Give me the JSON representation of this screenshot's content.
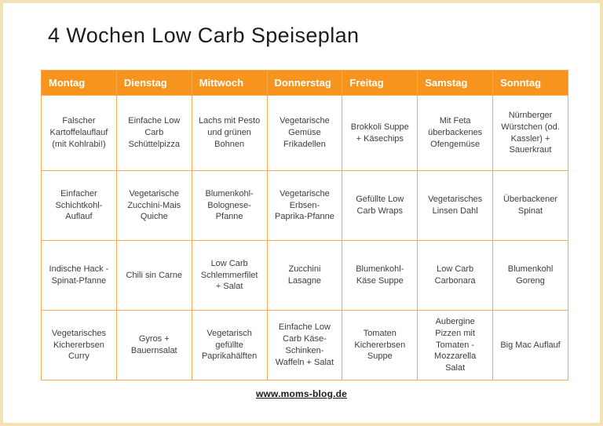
{
  "page": {
    "title": "4 Wochen Low Carb Speiseplan",
    "footer_link": "www.moms-blog.de"
  },
  "colors": {
    "header_bg": "#F7941E",
    "header_text": "#FFFFFF",
    "grid_border": "#F9A94D",
    "cell_text": "#3D3D3D",
    "frame": "#F3E2B4"
  },
  "table": {
    "columns": [
      "Montag",
      "Dienstag",
      "Mittwoch",
      "Donnerstag",
      "Freitag",
      "Samstag",
      "Sonntag"
    ],
    "rows": [
      [
        "Falscher Kartoffelauflauf (mit Kohlrabi!)",
        "Einfache Low Carb Schüttelpizza",
        "Lachs mit Pesto und grünen Bohnen",
        "Vegetarische Gemüse Frikadellen",
        "Brokkoli Suppe + Käsechips",
        "Mit Feta überbackenes Ofengemüse",
        "Nürnberger Würstchen (od. Kassler) + Sauerkraut"
      ],
      [
        "Einfacher Schichtkohl-Auflauf",
        "Vegetarische Zucchini-Mais Quiche",
        "Blumenkohl-Bolognese-Pfanne",
        "Vegetarische Erbsen-Paprika-Pfanne",
        "Gefüllte Low Carb Wraps",
        "Vegetarisches Linsen Dahl",
        "Überbackener Spinat"
      ],
      [
        "Indische Hack - Spinat-Pfanne",
        "Chili sin Carne",
        "Low Carb Schlemmerfilet + Salat",
        "Zucchini Lasagne",
        "Blumenkohl-Käse Suppe",
        "Low Carb Carbonara",
        "Blumenkohl Goreng"
      ],
      [
        "Vegetarisches Kichererbsen Curry",
        "Gyros + Bauernsalat",
        "Vegetarisch gefüllte Paprikahälften",
        "Einfache Low Carb Käse-Schinken-Waffeln + Salat",
        "Tomaten Kichererbsen Suppe",
        "Aubergine Pizzen mit Tomaten - Mozzarella Salat",
        "Big Mac Auflauf"
      ]
    ]
  }
}
